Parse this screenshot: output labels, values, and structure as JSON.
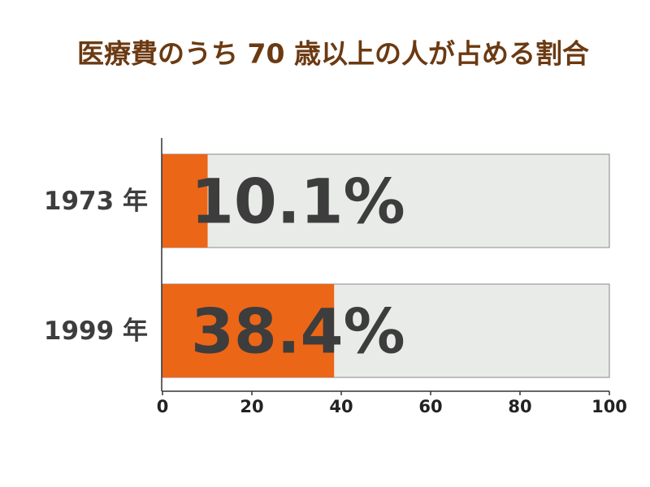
{
  "chart_data": {
    "type": "hbar",
    "title": "医療費のうち 70 歳以上の人が占める割合",
    "categories": [
      "1973 年",
      "1999 年"
    ],
    "values": [
      10.1,
      38.4
    ],
    "value_labels": [
      "10.1%",
      "38.4%"
    ],
    "color": "#ec6617",
    "xlim": [
      0,
      100
    ],
    "xticks": [
      0,
      20,
      40,
      60,
      80,
      100
    ]
  }
}
